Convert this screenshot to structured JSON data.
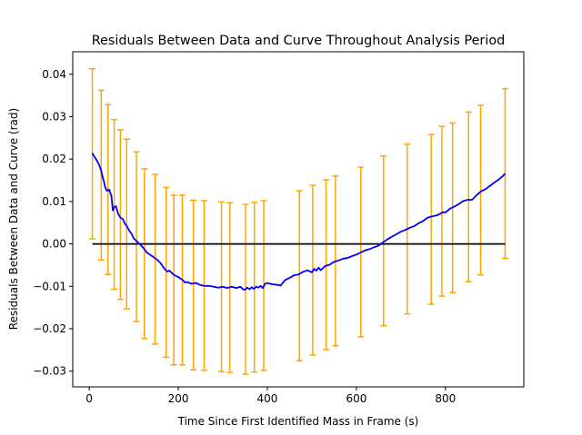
{
  "chart_data": {
    "type": "line",
    "title": "Residuals Between Data and Curve Throughout Analysis Period",
    "xlabel": "Time Since First Identified Mass in Frame (s)",
    "ylabel": "Residuals Between Data and Curve (rad)",
    "xlim": [
      -37,
      976
    ],
    "ylim": [
      -0.0337,
      0.0453
    ],
    "xticks": [
      {
        "value": 0,
        "label": "0"
      },
      {
        "value": 200,
        "label": "200"
      },
      {
        "value": 400,
        "label": "400"
      },
      {
        "value": 600,
        "label": "600"
      },
      {
        "value": 800,
        "label": "800"
      }
    ],
    "yticks": [
      {
        "value": -0.03,
        "label": "−0.03"
      },
      {
        "value": -0.02,
        "label": "−0.02"
      },
      {
        "value": -0.01,
        "label": "−0.01"
      },
      {
        "value": 0.0,
        "label": "0.00"
      },
      {
        "value": 0.01,
        "label": "0.01"
      },
      {
        "value": 0.02,
        "label": "0.02"
      },
      {
        "value": 0.03,
        "label": "0.03"
      },
      {
        "value": 0.04,
        "label": "0.04"
      }
    ],
    "grid": false,
    "colors": {
      "residual": "#0000ff",
      "errorbar": "#ffa500",
      "zero": "#000000"
    },
    "zero_line": {
      "x": [
        7,
        934
      ],
      "y": 0.0
    },
    "residual_line": {
      "x": [
        7,
        12,
        17,
        22,
        27,
        30,
        33,
        36,
        40,
        45,
        50,
        53,
        56,
        60,
        65,
        70,
        75,
        80,
        85,
        90,
        95,
        100,
        108,
        115,
        122,
        130,
        140,
        150,
        160,
        170,
        175,
        180,
        190,
        200,
        205,
        210,
        215,
        220,
        230,
        240,
        250,
        260,
        270,
        280,
        290,
        300,
        310,
        320,
        330,
        340,
        345,
        350,
        355,
        360,
        365,
        370,
        375,
        380,
        385,
        390,
        395,
        400,
        410,
        420,
        430,
        440,
        450,
        460,
        470,
        480,
        490,
        500,
        505,
        510,
        515,
        520,
        530,
        540,
        550,
        560,
        570,
        580,
        590,
        600,
        610,
        620,
        630,
        640,
        650,
        660,
        670,
        680,
        690,
        700,
        710,
        720,
        730,
        740,
        750,
        760,
        770,
        780,
        790,
        795,
        800,
        810,
        820,
        830,
        840,
        850,
        860,
        870,
        880,
        890,
        900,
        910,
        920,
        930,
        934
      ],
      "y": [
        0.0214,
        0.0205,
        0.0197,
        0.0187,
        0.0172,
        0.0158,
        0.0147,
        0.0133,
        0.0125,
        0.0128,
        0.0112,
        0.0079,
        0.0087,
        0.0089,
        0.0071,
        0.0062,
        0.0059,
        0.0048,
        0.0041,
        0.0031,
        0.0024,
        0.0013,
        0.0005,
        -0.0002,
        -0.001,
        -0.0021,
        -0.0028,
        -0.0035,
        -0.0045,
        -0.006,
        -0.0065,
        -0.0063,
        -0.0073,
        -0.0078,
        -0.0082,
        -0.0085,
        -0.0091,
        -0.009,
        -0.0094,
        -0.0092,
        -0.0097,
        -0.0099,
        -0.0099,
        -0.0101,
        -0.0103,
        -0.0101,
        -0.0104,
        -0.0101,
        -0.0104,
        -0.0101,
        -0.0107,
        -0.0108,
        -0.0103,
        -0.0107,
        -0.0102,
        -0.0106,
        -0.0101,
        -0.0103,
        -0.0099,
        -0.0104,
        -0.0094,
        -0.0092,
        -0.0095,
        -0.0096,
        -0.0098,
        -0.0085,
        -0.008,
        -0.0074,
        -0.0072,
        -0.0066,
        -0.0062,
        -0.0067,
        -0.0059,
        -0.0063,
        -0.0056,
        -0.0062,
        -0.0052,
        -0.0049,
        -0.0042,
        -0.0039,
        -0.0035,
        -0.0033,
        -0.0029,
        -0.0025,
        -0.002,
        -0.0015,
        -0.0012,
        -0.0008,
        -0.0004,
        0.0004,
        0.0011,
        0.0017,
        0.0023,
        0.0029,
        0.0033,
        0.0038,
        0.0042,
        0.0049,
        0.0054,
        0.0062,
        0.0065,
        0.0067,
        0.0072,
        0.0075,
        0.0074,
        0.0083,
        0.0088,
        0.0094,
        0.0101,
        0.0104,
        0.0104,
        0.0115,
        0.0124,
        0.0129,
        0.0137,
        0.0145,
        0.0152,
        0.0161,
        0.0166
      ]
    },
    "error_bars": [
      {
        "x": 7,
        "low": 0.0012,
        "high": 0.0413
      },
      {
        "x": 27,
        "low": -0.0038,
        "high": 0.0362
      },
      {
        "x": 42,
        "low": -0.0072,
        "high": 0.0328
      },
      {
        "x": 56,
        "low": -0.0107,
        "high": 0.0293
      },
      {
        "x": 70,
        "low": -0.0131,
        "high": 0.0269
      },
      {
        "x": 84,
        "low": -0.0153,
        "high": 0.0247
      },
      {
        "x": 106,
        "low": -0.0183,
        "high": 0.0217
      },
      {
        "x": 124,
        "low": -0.0223,
        "high": 0.0177
      },
      {
        "x": 148,
        "low": -0.0236,
        "high": 0.0164
      },
      {
        "x": 173,
        "low": -0.0267,
        "high": 0.0133
      },
      {
        "x": 190,
        "low": -0.0285,
        "high": 0.0115
      },
      {
        "x": 209,
        "low": -0.0285,
        "high": 0.0115
      },
      {
        "x": 234,
        "low": -0.0297,
        "high": 0.0103
      },
      {
        "x": 258,
        "low": -0.0298,
        "high": 0.0102
      },
      {
        "x": 297,
        "low": -0.0301,
        "high": 0.0099
      },
      {
        "x": 316,
        "low": -0.0303,
        "high": 0.0097
      },
      {
        "x": 351,
        "low": -0.0307,
        "high": 0.0093
      },
      {
        "x": 371,
        "low": -0.0302,
        "high": 0.0098
      },
      {
        "x": 392,
        "low": -0.0298,
        "high": 0.0102
      },
      {
        "x": 472,
        "low": -0.0275,
        "high": 0.0125
      },
      {
        "x": 502,
        "low": -0.0262,
        "high": 0.0138
      },
      {
        "x": 532,
        "low": -0.0249,
        "high": 0.0151
      },
      {
        "x": 553,
        "low": -0.024,
        "high": 0.016
      },
      {
        "x": 610,
        "low": -0.0219,
        "high": 0.0181
      },
      {
        "x": 661,
        "low": -0.0193,
        "high": 0.0207
      },
      {
        "x": 714,
        "low": -0.0165,
        "high": 0.0235
      },
      {
        "x": 768,
        "low": -0.0142,
        "high": 0.0258
      },
      {
        "x": 792,
        "low": -0.0123,
        "high": 0.0277
      },
      {
        "x": 816,
        "low": -0.0115,
        "high": 0.0285
      },
      {
        "x": 852,
        "low": -0.0089,
        "high": 0.0311
      },
      {
        "x": 879,
        "low": -0.0073,
        "high": 0.0327
      },
      {
        "x": 934,
        "low": -0.0034,
        "high": 0.0366
      }
    ]
  }
}
